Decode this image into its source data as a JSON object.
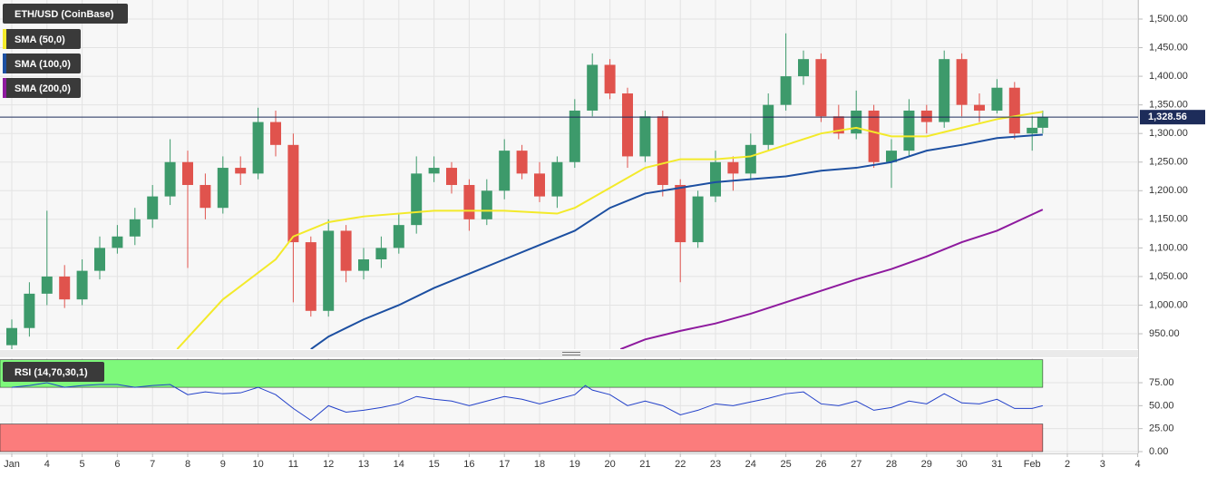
{
  "chart_data": [
    {
      "type": "candlestick",
      "title": "ETH/USD (CoinBase)",
      "x": [
        3,
        3.5,
        4,
        4.5,
        5,
        5.5,
        6,
        6.5,
        7,
        7.5,
        8,
        8.5,
        9,
        9.5,
        10,
        10.5,
        11,
        11.5,
        12,
        12.5,
        13,
        13.5,
        14,
        14.5,
        15,
        15.5,
        16,
        16.5,
        17,
        17.5,
        18,
        18.5,
        19,
        19.5,
        20,
        20.5,
        21,
        21.5,
        22,
        22.5,
        23,
        23.5,
        24,
        24.5,
        25,
        25.5,
        26,
        26.5,
        27,
        27.5,
        28,
        28.5,
        29,
        29.5,
        30,
        30.5,
        31,
        31.5,
        32,
        32.3
      ],
      "open": [
        930,
        960,
        1020,
        1050,
        1010,
        1060,
        1100,
        1120,
        1150,
        1190,
        1250,
        1210,
        1170,
        1240,
        1230,
        1320,
        1280,
        1110,
        990,
        1130,
        1060,
        1080,
        1100,
        1140,
        1230,
        1240,
        1210,
        1150,
        1200,
        1270,
        1230,
        1190,
        1250,
        1340,
        1420,
        1370,
        1260,
        1330,
        1210,
        1110,
        1190,
        1250,
        1230,
        1280,
        1350,
        1400,
        1430,
        1330,
        1300,
        1340,
        1250,
        1270,
        1340,
        1320,
        1430,
        1350,
        1340,
        1380,
        1300,
        1310
      ],
      "close": [
        960,
        1020,
        1050,
        1010,
        1060,
        1100,
        1120,
        1150,
        1190,
        1250,
        1210,
        1170,
        1240,
        1230,
        1320,
        1280,
        1110,
        990,
        1130,
        1060,
        1080,
        1100,
        1140,
        1230,
        1240,
        1210,
        1150,
        1200,
        1270,
        1230,
        1190,
        1250,
        1340,
        1420,
        1370,
        1260,
        1330,
        1210,
        1110,
        1190,
        1250,
        1230,
        1280,
        1350,
        1400,
        1430,
        1330,
        1300,
        1340,
        1250,
        1270,
        1340,
        1320,
        1430,
        1350,
        1340,
        1380,
        1300,
        1310,
        1328.56
      ],
      "high": [
        975,
        1040,
        1165,
        1070,
        1080,
        1120,
        1140,
        1170,
        1210,
        1290,
        1270,
        1230,
        1260,
        1260,
        1345,
        1340,
        1300,
        1120,
        1150,
        1140,
        1100,
        1120,
        1160,
        1260,
        1260,
        1250,
        1220,
        1220,
        1290,
        1280,
        1250,
        1260,
        1360,
        1440,
        1430,
        1380,
        1340,
        1340,
        1220,
        1200,
        1270,
        1260,
        1300,
        1370,
        1475,
        1445,
        1440,
        1350,
        1375,
        1350,
        1290,
        1360,
        1350,
        1445,
        1440,
        1370,
        1395,
        1390,
        1330,
        1340
      ],
      "low": [
        915,
        945,
        1000,
        995,
        1000,
        1045,
        1090,
        1105,
        1135,
        1175,
        1065,
        1150,
        1160,
        1210,
        1220,
        1260,
        1005,
        980,
        980,
        1040,
        1045,
        1065,
        1090,
        1125,
        1215,
        1195,
        1130,
        1140,
        1185,
        1220,
        1180,
        1170,
        1240,
        1330,
        1360,
        1240,
        1250,
        1190,
        1040,
        1100,
        1180,
        1200,
        1220,
        1270,
        1340,
        1385,
        1320,
        1290,
        1290,
        1240,
        1205,
        1260,
        1300,
        1310,
        1330,
        1320,
        1335,
        1290,
        1270,
        1300
      ],
      "up_color": "#3d9a6b",
      "down_color": "#e0534d",
      "series": [
        {
          "name": "SMA (50,0)",
          "color": "#f3ea2a",
          "x": [
            7.7,
            9,
            10.5,
            11,
            12,
            13,
            15,
            17,
            18.5,
            19,
            20,
            21,
            22,
            23,
            24,
            25,
            26,
            27,
            28,
            29,
            30,
            31,
            32.3
          ],
          "values": [
            923,
            1010,
            1080,
            1120,
            1145,
            1155,
            1165,
            1165,
            1160,
            1170,
            1205,
            1240,
            1255,
            1255,
            1260,
            1280,
            1300,
            1310,
            1295,
            1295,
            1310,
            1325,
            1338
          ]
        },
        {
          "name": "SMA (100,0)",
          "color": "#1c4fa1",
          "x": [
            11.5,
            12,
            13,
            14,
            15,
            16,
            17,
            18,
            19,
            20,
            21,
            22,
            23,
            24,
            25,
            26,
            27,
            28,
            29,
            30,
            31,
            32.3
          ],
          "values": [
            923,
            945,
            975,
            1000,
            1030,
            1055,
            1080,
            1105,
            1130,
            1170,
            1195,
            1205,
            1215,
            1220,
            1225,
            1235,
            1240,
            1250,
            1270,
            1280,
            1292,
            1298
          ]
        },
        {
          "name": "SMA (200,0)",
          "color": "#8e1a9e",
          "x": [
            20.3,
            21,
            22,
            23,
            24,
            25,
            26,
            27,
            28,
            29,
            30,
            31,
            32.3
          ],
          "values": [
            923,
            940,
            955,
            968,
            985,
            1005,
            1025,
            1045,
            1063,
            1085,
            1110,
            1130,
            1167
          ]
        }
      ],
      "last_price": 1328.56,
      "last_price_label": "1,328.56",
      "xlim": [
        2.665,
        35.01
      ],
      "ylim": [
        923.1,
        1533.3
      ],
      "yticks": [
        {
          "value": 950,
          "label": "950.00"
        },
        {
          "value": 1000,
          "label": "1,000.00"
        },
        {
          "value": 1050,
          "label": "1,050.00"
        },
        {
          "value": 1100,
          "label": "1,100.00"
        },
        {
          "value": 1150,
          "label": "1,150.00"
        },
        {
          "value": 1200,
          "label": "1,200.00"
        },
        {
          "value": 1250,
          "label": "1,250.00"
        },
        {
          "value": 1300,
          "label": "1,300.00"
        },
        {
          "value": 1350,
          "label": "1,350.00"
        },
        {
          "value": 1400,
          "label": "1,400.00"
        },
        {
          "value": 1450,
          "label": "1,450.00"
        },
        {
          "value": 1500,
          "label": "1,500.00"
        }
      ],
      "grid": true
    },
    {
      "type": "line",
      "title": "RSI (14,70,30,1)",
      "color": "#2240c9",
      "x": [
        3,
        3.5,
        4,
        4.5,
        5,
        5.5,
        6,
        6.5,
        7,
        7.5,
        8,
        8.5,
        9,
        9.5,
        10,
        10.5,
        11,
        11.5,
        12,
        12.5,
        13,
        13.5,
        14,
        14.5,
        15,
        15.5,
        16,
        16.5,
        17,
        17.5,
        18,
        18.5,
        19,
        19.3,
        19.5,
        20,
        20.5,
        21,
        21.5,
        22,
        22.5,
        23,
        23.5,
        24,
        24.5,
        25,
        25.5,
        26,
        26.5,
        27,
        27.5,
        28,
        28.5,
        29,
        29.5,
        30,
        30.5,
        31,
        31.5,
        32,
        32.3
      ],
      "values": [
        70,
        72,
        75,
        70,
        72,
        73,
        73,
        70,
        72,
        73,
        62,
        65,
        63,
        64,
        70,
        62,
        47,
        34,
        50,
        43,
        45,
        48,
        52,
        60,
        57,
        55,
        50,
        55,
        60,
        57,
        52,
        57,
        62,
        72,
        67,
        62,
        50,
        55,
        50,
        40,
        45,
        52,
        50,
        54,
        58,
        63,
        65,
        52,
        50,
        55,
        45,
        48,
        55,
        52,
        63,
        53,
        52,
        57,
        47,
        47,
        50
      ],
      "bands": [
        {
          "from": 70,
          "to": 100,
          "color": "#7ef97b"
        },
        {
          "from": 0,
          "to": 30,
          "color": "#fb7c7c"
        }
      ],
      "xlim": [
        2.665,
        35.01
      ],
      "ylim": [
        -2,
        101.7
      ],
      "yticks": [
        {
          "value": 0,
          "label": "0.00"
        },
        {
          "value": 25,
          "label": "25.00"
        },
        {
          "value": 50,
          "label": "50.00"
        },
        {
          "value": 75,
          "label": "75.00"
        }
      ],
      "xticks": [
        {
          "value": 3,
          "label": "Jan"
        },
        4,
        5,
        6,
        7,
        8,
        9,
        10,
        11,
        12,
        13,
        14,
        15,
        16,
        17,
        18,
        19,
        20,
        21,
        22,
        23,
        24,
        25,
        26,
        27,
        28,
        29,
        30,
        31,
        {
          "value": 32,
          "label": "Feb"
        },
        {
          "value": 33,
          "label": "2"
        },
        {
          "value": 34,
          "label": "3"
        },
        {
          "value": 35,
          "label": "4"
        }
      ],
      "grid": true
    }
  ]
}
